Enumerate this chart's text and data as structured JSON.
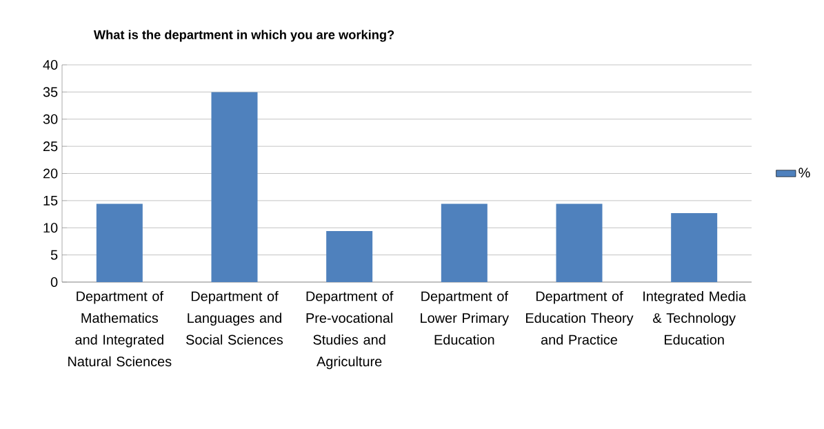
{
  "chart_data": {
    "type": "bar",
    "title": "What is the department in which you are working?",
    "categories": [
      "Department of Mathematics and Integrated Natural Sciences",
      "Department of Languages and Social Sciences",
      "Department of Pre-vocational Studies and Agriculture",
      "Department of Lower Primary Education",
      "Department of Education Theory and Practice",
      "Integrated Media & Technology Education"
    ],
    "series": [
      {
        "name": "%",
        "color": "#4f81bd",
        "values": [
          14.4,
          35,
          9.4,
          14.4,
          14.4,
          12.7
        ]
      }
    ],
    "ylim": [
      0,
      40
    ],
    "yticks": [
      0,
      5,
      10,
      15,
      20,
      25,
      30,
      35,
      40
    ],
    "grid": "y",
    "legend": "right"
  }
}
